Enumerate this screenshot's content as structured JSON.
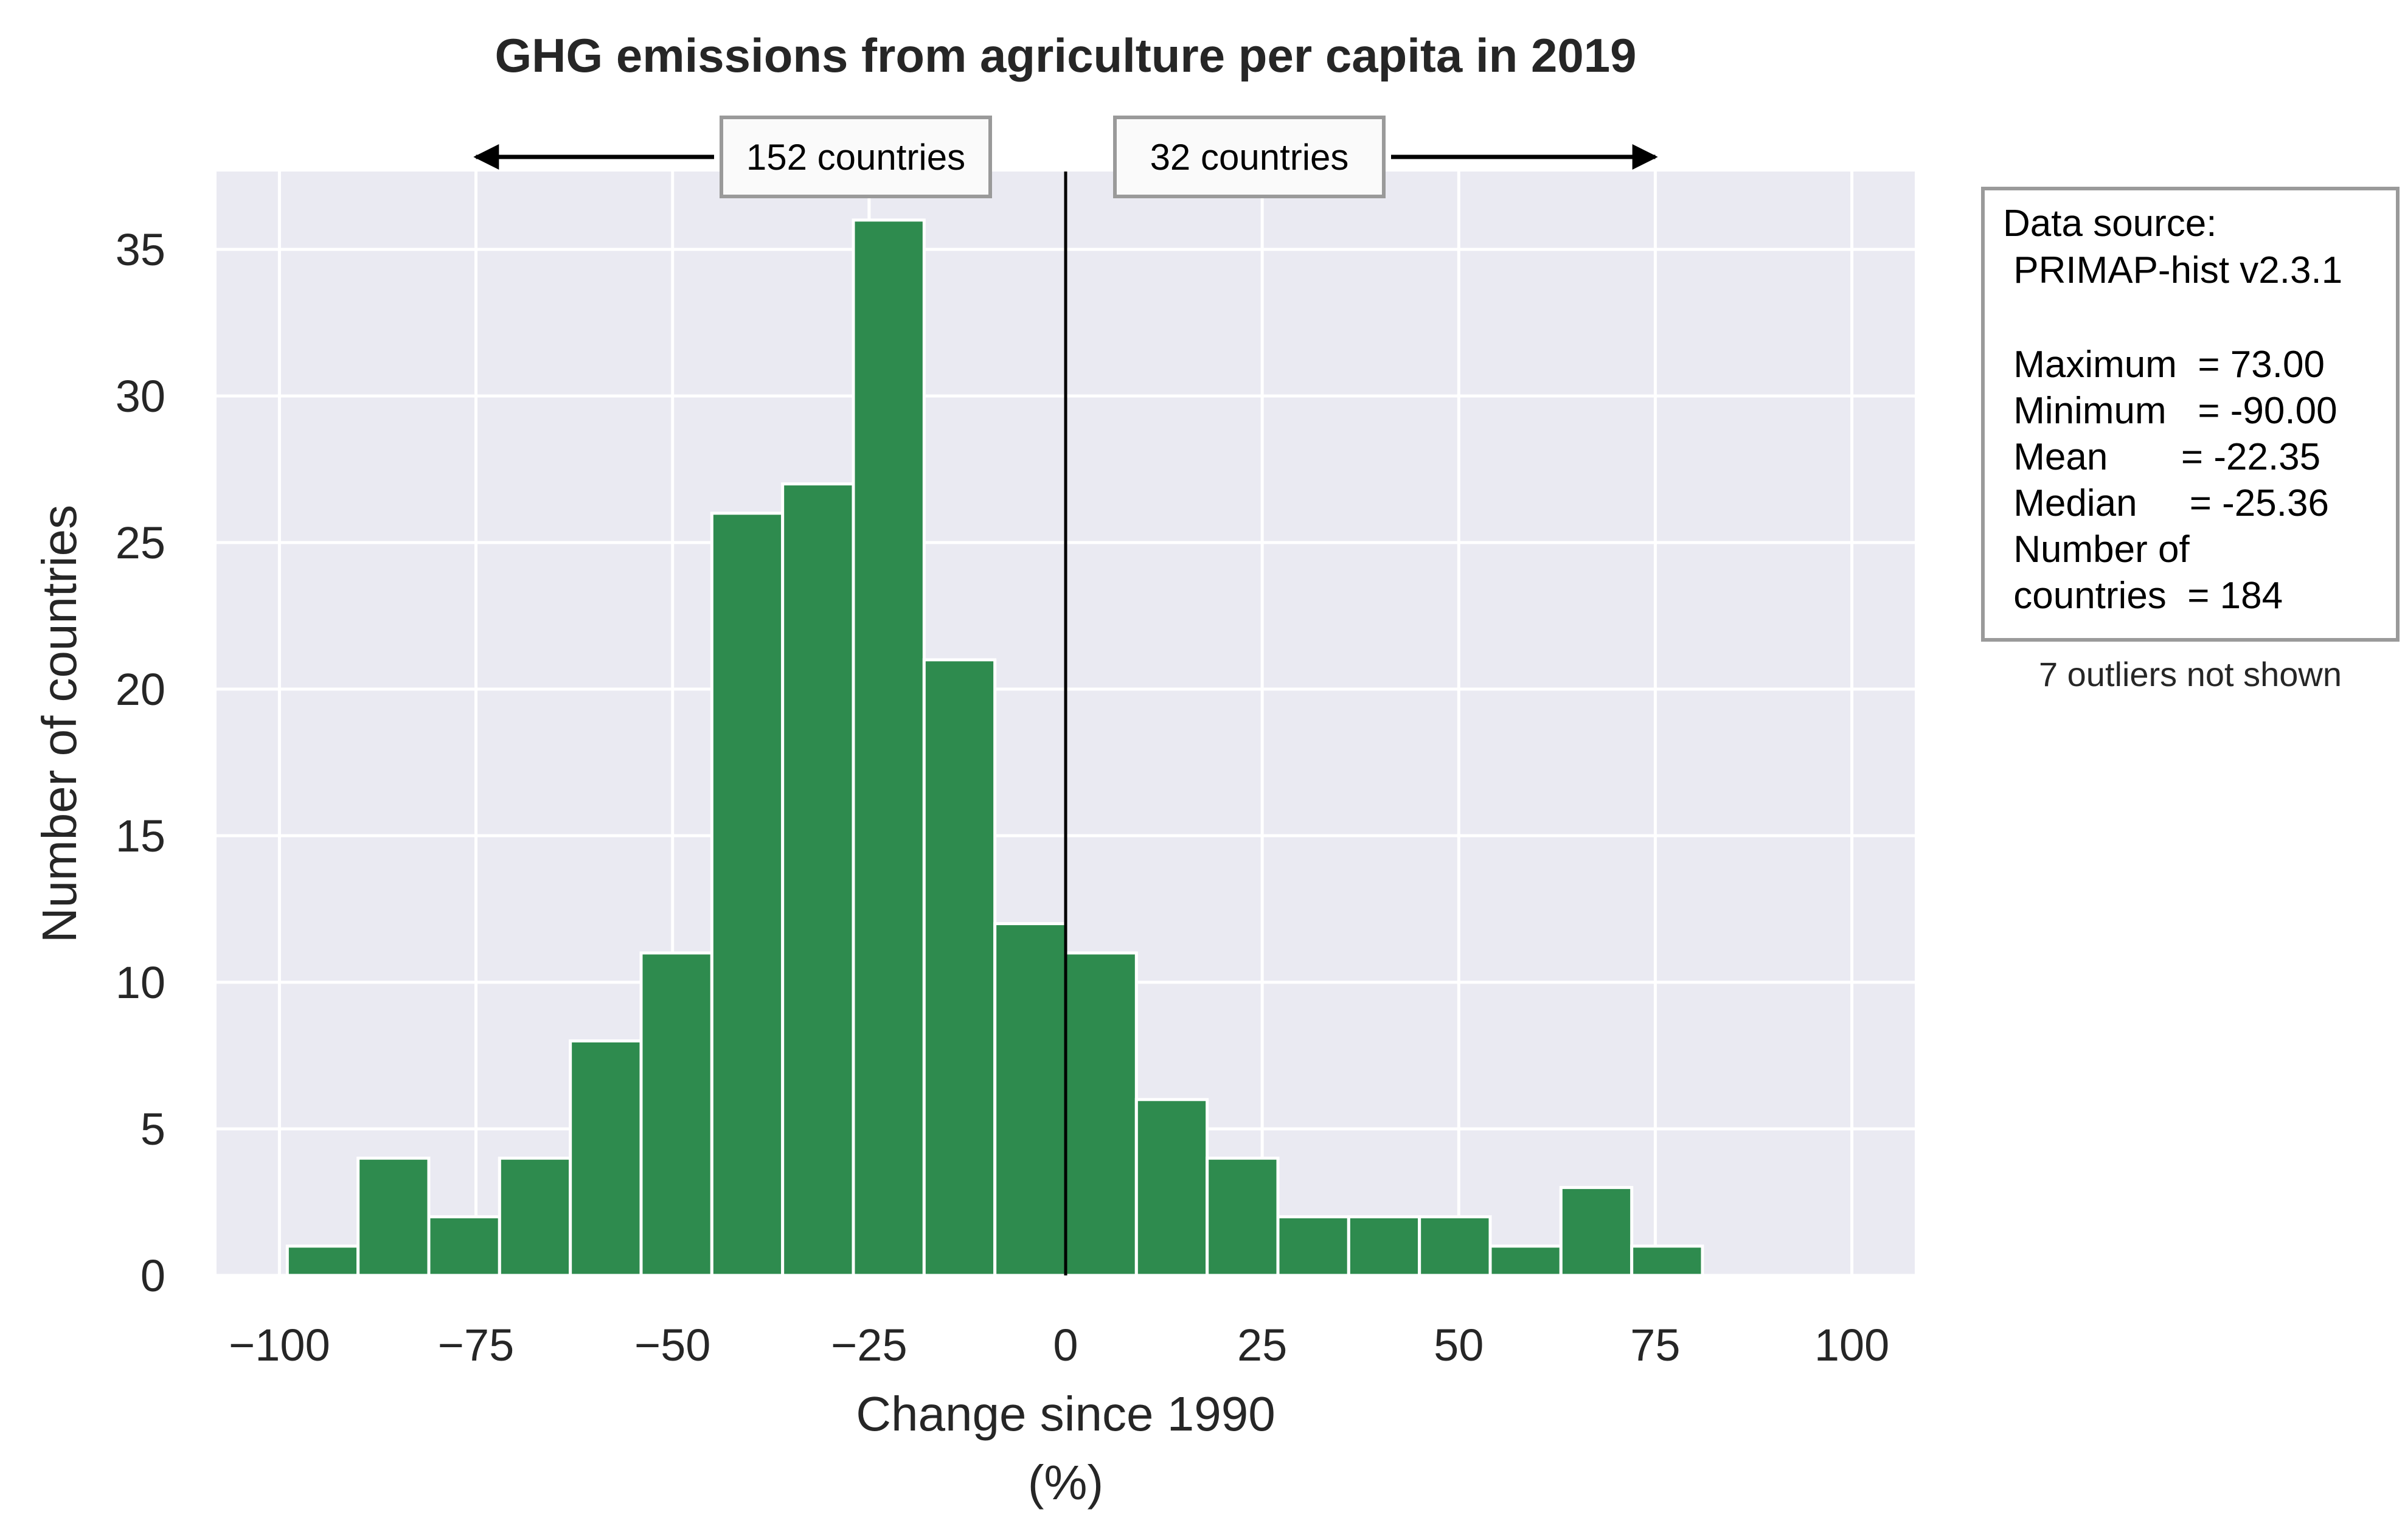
{
  "chart_data": {
    "type": "bar",
    "title": "GHG emissions from agriculture per capita in 2019",
    "xlabel": "Change since 1990",
    "xlabel_unit": "(%)",
    "ylabel": "Number of countries",
    "xlim": [
      -108,
      108
    ],
    "ylim": [
      0,
      37.5
    ],
    "x_ticks": [
      -100,
      -75,
      -50,
      -25,
      0,
      25,
      50,
      75,
      100
    ],
    "x_tick_labels": [
      "−100",
      "−75",
      "−50",
      "−25",
      "0",
      "25",
      "50",
      "75",
      "100"
    ],
    "y_ticks": [
      0,
      5,
      10,
      15,
      20,
      25,
      30,
      35
    ],
    "y_tick_labels": [
      "0",
      "5",
      "10",
      "15",
      "20",
      "25",
      "30",
      "35"
    ],
    "grid": true,
    "bins": [
      {
        "start": -99,
        "end": -90,
        "count": 1
      },
      {
        "start": -90,
        "end": -81,
        "count": 4
      },
      {
        "start": -81,
        "end": -72,
        "count": 2
      },
      {
        "start": -72,
        "end": -63,
        "count": 4
      },
      {
        "start": -63,
        "end": -54,
        "count": 8
      },
      {
        "start": -54,
        "end": -45,
        "count": 11
      },
      {
        "start": -45,
        "end": -36,
        "count": 26
      },
      {
        "start": -36,
        "end": -27,
        "count": 27
      },
      {
        "start": -27,
        "end": -18,
        "count": 36
      },
      {
        "start": -18,
        "end": -9,
        "count": 21
      },
      {
        "start": -9,
        "end": 0,
        "count": 12
      },
      {
        "start": 0,
        "end": 9,
        "count": 11
      },
      {
        "start": 9,
        "end": 18,
        "count": 6
      },
      {
        "start": 18,
        "end": 27,
        "count": 4
      },
      {
        "start": 27,
        "end": 36,
        "count": 2
      },
      {
        "start": 36,
        "end": 45,
        "count": 2
      },
      {
        "start": 45,
        "end": 54,
        "count": 2
      },
      {
        "start": 54,
        "end": 63,
        "count": 1
      },
      {
        "start": 63,
        "end": 72,
        "count": 3
      },
      {
        "start": 72,
        "end": 81,
        "count": 1
      }
    ],
    "reference_line_x": 0,
    "annotations": {
      "left_label": "152 countries",
      "right_label": "32 countries",
      "left_arrow_to": -75,
      "right_arrow_to": 75
    },
    "stats_box": {
      "lines": [
        "Data source:",
        " PRIMAP-hist v2.3.1",
        "",
        " Maximum  = 73.00",
        " Minimum   = -90.00",
        " Mean       = -22.35",
        " Median     = -25.36",
        " Number of",
        " countries  = 184"
      ],
      "footnote": "7 outliers not shown"
    },
    "colors": {
      "bar_fill": "#2e8b4e",
      "bar_edge": "#ffffff",
      "plot_background": "#eaeaf2",
      "grid": "#ffffff",
      "text": "#262626",
      "reference_line": "#000000",
      "box_border": "#9a9a9a",
      "box_fill": "#fafafa"
    }
  }
}
